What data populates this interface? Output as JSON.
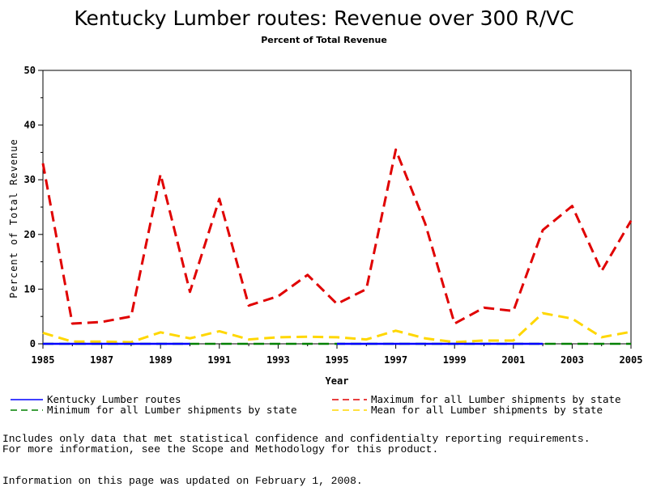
{
  "chart_data": {
    "type": "line",
    "title": "Kentucky Lumber routes: Revenue over 300 R/VC",
    "subtitle": "Percent of Total Revenue",
    "xlabel": "Year",
    "ylabel": "Percent of Total Revenue",
    "xlim": [
      1985,
      2005
    ],
    "ylim": [
      0,
      50
    ],
    "x_ticks": [
      "1985",
      "1987",
      "1989",
      "1991",
      "1993",
      "1995",
      "1997",
      "1999",
      "2001",
      "2003",
      "2005"
    ],
    "y_ticks": [
      "0",
      "10",
      "20",
      "30",
      "40",
      "50"
    ],
    "x": [
      1985,
      1986,
      1987,
      1988,
      1989,
      1990,
      1991,
      1992,
      1993,
      1994,
      1995,
      1996,
      1997,
      1998,
      1999,
      2000,
      2001,
      2002,
      2003,
      2004,
      2005
    ],
    "series": [
      {
        "name": "Kentucky Lumber routes",
        "color": "#0000ff",
        "dash": "solid",
        "values": [
          0,
          0,
          0,
          0,
          0,
          0,
          null,
          null,
          null,
          null,
          0,
          0,
          0,
          0,
          0,
          0,
          0,
          0,
          null,
          null,
          null
        ]
      },
      {
        "name": "Maximum for all Lumber shipments by state",
        "color": "#e00000",
        "dash": "dashed",
        "values": [
          33,
          3.7,
          4,
          5,
          31,
          9.5,
          26.5,
          7,
          8.7,
          12.6,
          7.3,
          10,
          35.5,
          22,
          3.7,
          6.6,
          6,
          20.8,
          25.2,
          13.3,
          22.5
        ]
      },
      {
        "name": "Minimum for all Lumber shipments by state",
        "color": "#008000",
        "dash": "dashed",
        "values": [
          0,
          0,
          0,
          0,
          0,
          0,
          0,
          0,
          0,
          0,
          0,
          0,
          0,
          0,
          0,
          0,
          0,
          0,
          0,
          0,
          0
        ]
      },
      {
        "name": "Mean for all Lumber shipments by state",
        "color": "#ffd700",
        "dash": "dashed",
        "values": [
          2,
          0.4,
          0.4,
          0.3,
          2.1,
          1,
          2.3,
          0.8,
          1.2,
          1.3,
          1.2,
          0.8,
          2.4,
          1,
          0.3,
          0.6,
          0.6,
          5.6,
          4.6,
          1.2,
          2.2
        ]
      }
    ],
    "legend_placement": "bottom",
    "grid": false
  },
  "footnotes": {
    "line1": "Includes only data that met statistical confidence and confidentialty reporting requirements.",
    "line2": "For more information, see the Scope and Methodology for this product.",
    "line3": "Information on this page was updated on February 1, 2008."
  }
}
